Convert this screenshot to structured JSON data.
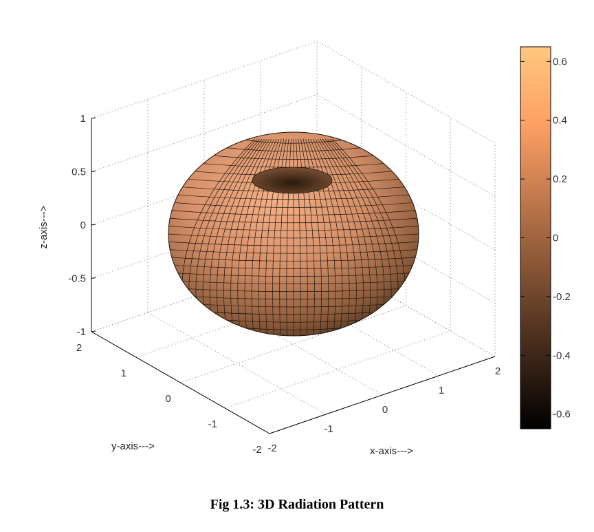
{
  "caption": "Fig 1.3: 3D Radiation Pattern",
  "chart_data": {
    "type": "surface",
    "surface": "toroidal radiation pattern (donut), max radius ~0.65",
    "xlabel": "x-axis--->",
    "ylabel": "y-axis--->",
    "zlabel": "z-axis--->",
    "xlim": [
      -2,
      2
    ],
    "ylim": [
      -2,
      2
    ],
    "zlim": [
      -1,
      1
    ],
    "x_ticks": [
      "-2",
      "-1",
      "0",
      "1",
      "2"
    ],
    "y_ticks": [
      "-2",
      "-1",
      "0",
      "1",
      "2"
    ],
    "z_ticks": [
      "-1",
      "-0.5",
      "0",
      "0.5",
      "1"
    ],
    "grid": true,
    "colormap": "copper",
    "colorbar": {
      "range": [
        -0.65,
        0.65
      ],
      "ticks": [
        "-0.6",
        "-0.4",
        "-0.2",
        "0",
        "0.2",
        "0.4",
        "0.6"
      ],
      "low_color": "#000000",
      "high_color": "#ffc77f"
    }
  }
}
